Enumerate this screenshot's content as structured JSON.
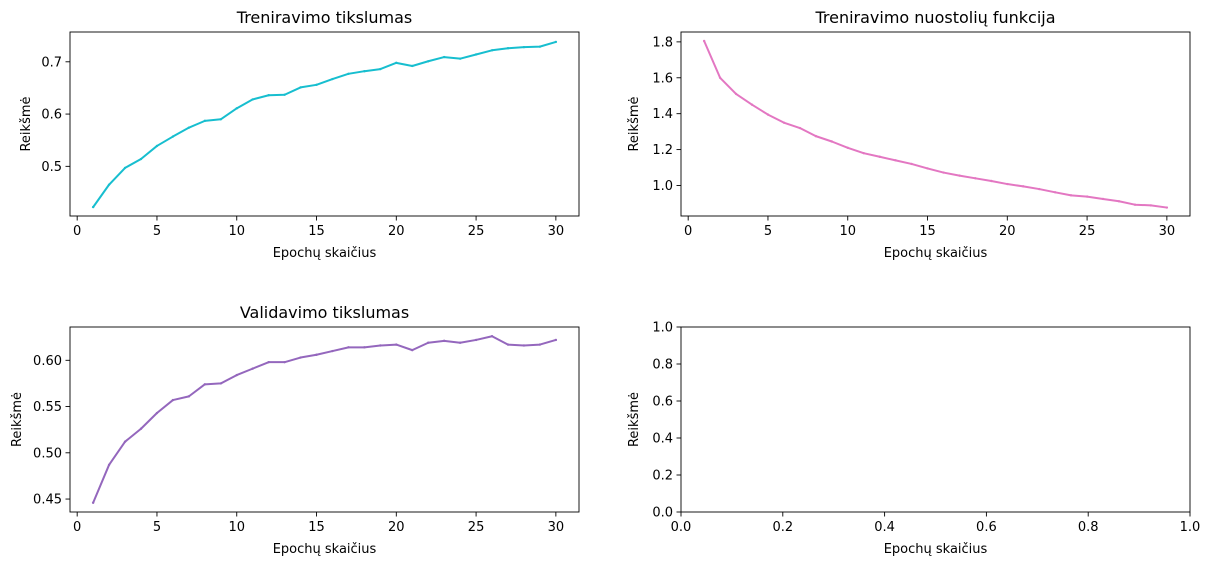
{
  "chart_data": [
    {
      "type": "line",
      "title": "Treniravimo tikslumas",
      "xlabel": "Epochų skaičius",
      "ylabel": "Reikšmė",
      "xlim": [
        -0.45,
        31.45
      ],
      "ylim": [
        0.405,
        0.757
      ],
      "xticks": [
        "0",
        "5",
        "10",
        "15",
        "20",
        "25",
        "30"
      ],
      "yticks": [
        "0.5",
        "0.6",
        "0.7"
      ],
      "color": "#17becf",
      "grid": false,
      "series": [
        {
          "x": [
            1,
            2,
            3,
            4,
            5,
            6,
            7,
            8,
            9,
            10,
            11,
            12,
            13,
            14,
            15,
            16,
            17,
            18,
            19,
            20,
            21,
            22,
            23,
            24,
            25,
            26,
            27,
            28,
            29,
            30
          ],
          "values": [
            0.422,
            0.465,
            0.497,
            0.514,
            0.539,
            0.557,
            0.574,
            0.587,
            0.59,
            0.611,
            0.628,
            0.636,
            0.637,
            0.651,
            0.656,
            0.667,
            0.677,
            0.682,
            0.686,
            0.698,
            0.692,
            0.701,
            0.709,
            0.706,
            0.714,
            0.722,
            0.726,
            0.728,
            0.729,
            0.738
          ]
        }
      ]
    },
    {
      "type": "line",
      "title": "Treniravimo nuostolių funkcija",
      "xlabel": "Epochų skaičius",
      "ylabel": "Reikšmė",
      "xlim": [
        -0.45,
        31.45
      ],
      "ylim": [
        0.83,
        1.855
      ],
      "xticks": [
        "0",
        "5",
        "10",
        "15",
        "20",
        "25",
        "30"
      ],
      "yticks": [
        "1.0",
        "1.2",
        "1.4",
        "1.6",
        "1.8"
      ],
      "color": "#e377c2",
      "grid": false,
      "series": [
        {
          "x": [
            1,
            2,
            3,
            4,
            5,
            6,
            7,
            8,
            9,
            10,
            11,
            12,
            13,
            14,
            15,
            16,
            17,
            18,
            19,
            20,
            21,
            22,
            23,
            24,
            25,
            26,
            27,
            28,
            29,
            30
          ],
          "values": [
            1.805,
            1.6,
            1.51,
            1.45,
            1.395,
            1.35,
            1.32,
            1.275,
            1.245,
            1.21,
            1.18,
            1.16,
            1.14,
            1.12,
            1.095,
            1.072,
            1.055,
            1.04,
            1.025,
            1.008,
            0.995,
            0.98,
            0.962,
            0.945,
            0.938,
            0.925,
            0.912,
            0.893,
            0.889,
            0.877
          ]
        }
      ]
    },
    {
      "type": "line",
      "title": "Validavimo tikslumas",
      "xlabel": "Epochų skaičius",
      "ylabel": "Reikšmė",
      "xlim": [
        -0.45,
        31.45
      ],
      "ylim": [
        0.436,
        0.636
      ],
      "xticks": [
        "0",
        "5",
        "10",
        "15",
        "20",
        "25",
        "30"
      ],
      "yticks": [
        "0.45",
        "0.50",
        "0.55",
        "0.60"
      ],
      "color": "#9467bd",
      "grid": false,
      "series": [
        {
          "x": [
            1,
            2,
            3,
            4,
            5,
            6,
            7,
            8,
            9,
            10,
            11,
            12,
            13,
            14,
            15,
            16,
            17,
            18,
            19,
            20,
            21,
            22,
            23,
            24,
            25,
            26,
            27,
            28,
            29,
            30
          ],
          "values": [
            0.446,
            0.487,
            0.512,
            0.526,
            0.543,
            0.557,
            0.561,
            0.574,
            0.575,
            0.584,
            0.591,
            0.598,
            0.598,
            0.603,
            0.606,
            0.61,
            0.614,
            0.614,
            0.616,
            0.617,
            0.611,
            0.619,
            0.621,
            0.619,
            0.622,
            0.626,
            0.617,
            0.616,
            0.617,
            0.622
          ]
        }
      ]
    },
    {
      "type": "line",
      "title": "",
      "xlabel": "Epochų skaičius",
      "ylabel": "Reikšmė",
      "xlim": [
        0,
        1
      ],
      "ylim": [
        0,
        1
      ],
      "xticks": [
        "0.0",
        "0.2",
        "0.4",
        "0.6",
        "0.8",
        "1.0"
      ],
      "yticks": [
        "0.0",
        "0.2",
        "0.4",
        "0.6",
        "0.8",
        "1.0"
      ],
      "grid": false,
      "series": []
    }
  ]
}
